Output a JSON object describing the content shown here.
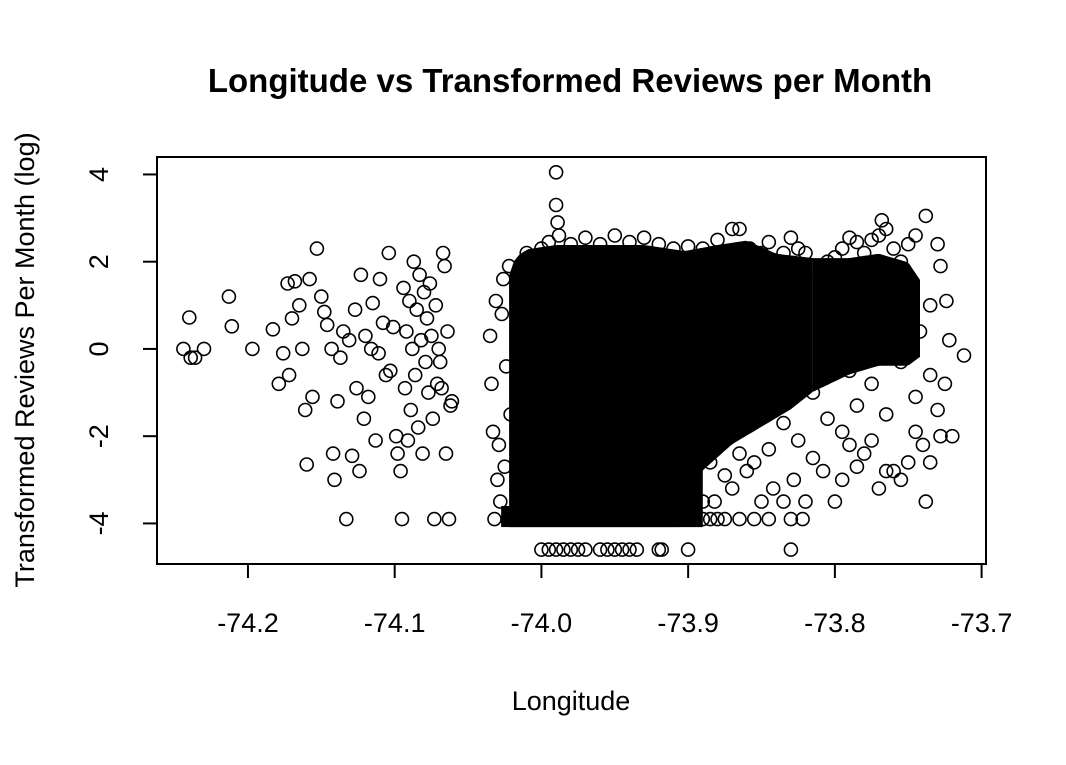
{
  "chart_data": {
    "type": "scatter",
    "title": "Longitude vs Transformed Reviews per Month",
    "xlabel": "Longitude",
    "ylabel": "Transformed Reviews Per Month (log)",
    "xlim": [
      -74.262,
      -73.697
    ],
    "ylim": [
      -4.93,
      4.4
    ],
    "x_ticks": [
      -74.2,
      -74.1,
      -74.0,
      -73.9,
      -73.8,
      -73.7
    ],
    "x_tick_labels": [
      "-74.2",
      "-74.1",
      "-74.0",
      "-73.9",
      "-73.8",
      "-73.7"
    ],
    "y_ticks": [
      -4,
      -2,
      0,
      2,
      4
    ],
    "y_tick_labels": [
      "-4",
      "-2",
      "0",
      "2",
      "4"
    ],
    "grid": false,
    "legend": "none",
    "marker": "open-circle",
    "color": "#000000",
    "points": [
      [
        -74.244,
        0.0
      ],
      [
        -74.24,
        0.72
      ],
      [
        -74.239,
        -0.2
      ],
      [
        -74.236,
        -0.2
      ],
      [
        -74.23,
        0.0
      ],
      [
        -74.213,
        1.2
      ],
      [
        -74.211,
        0.52
      ],
      [
        -74.197,
        0.0
      ],
      [
        -74.183,
        0.45
      ],
      [
        -74.179,
        -0.8
      ],
      [
        -74.176,
        -0.1
      ],
      [
        -74.173,
        1.5
      ],
      [
        -74.172,
        -0.6
      ],
      [
        -74.17,
        0.7
      ],
      [
        -74.168,
        1.55
      ],
      [
        -74.165,
        1.0
      ],
      [
        -74.163,
        0.0
      ],
      [
        -74.161,
        -1.4
      ],
      [
        -74.16,
        -2.65
      ],
      [
        -74.158,
        1.6
      ],
      [
        -74.156,
        -1.1
      ],
      [
        -74.153,
        2.3
      ],
      [
        -74.15,
        1.2
      ],
      [
        -74.148,
        0.85
      ],
      [
        -74.146,
        0.55
      ],
      [
        -74.143,
        0.0
      ],
      [
        -74.142,
        -2.4
      ],
      [
        -74.141,
        -3.0
      ],
      [
        -74.139,
        -1.2
      ],
      [
        -74.137,
        -0.2
      ],
      [
        -74.135,
        0.4
      ],
      [
        -74.133,
        -3.9
      ],
      [
        -74.131,
        0.2
      ],
      [
        -74.129,
        -2.45
      ],
      [
        -74.127,
        0.9
      ],
      [
        -74.126,
        -0.9
      ],
      [
        -74.124,
        -2.8
      ],
      [
        -74.123,
        1.7
      ],
      [
        -74.121,
        -1.6
      ],
      [
        -74.12,
        0.3
      ],
      [
        -74.118,
        -1.1
      ],
      [
        -74.116,
        0.0
      ],
      [
        -74.115,
        1.05
      ],
      [
        -74.113,
        -2.1
      ],
      [
        -74.111,
        -0.1
      ],
      [
        -74.11,
        1.6
      ],
      [
        -74.108,
        0.6
      ],
      [
        -74.106,
        -0.6
      ],
      [
        -74.104,
        2.2
      ],
      [
        -74.103,
        -0.5
      ],
      [
        -74.101,
        0.5
      ],
      [
        -74.099,
        -2.0
      ],
      [
        -74.098,
        -2.4
      ],
      [
        -74.096,
        -2.8
      ],
      [
        -74.095,
        -3.9
      ],
      [
        -74.094,
        1.4
      ],
      [
        -74.093,
        -0.9
      ],
      [
        -74.092,
        0.4
      ],
      [
        -74.091,
        -2.1
      ],
      [
        -74.09,
        1.1
      ],
      [
        -74.089,
        -1.4
      ],
      [
        -74.088,
        0.0
      ],
      [
        -74.087,
        2.0
      ],
      [
        -74.086,
        -0.6
      ],
      [
        -74.085,
        0.9
      ],
      [
        -74.084,
        -1.8
      ],
      [
        -74.083,
        1.7
      ],
      [
        -74.082,
        0.2
      ],
      [
        -74.081,
        -2.4
      ],
      [
        -74.08,
        1.3
      ],
      [
        -74.079,
        -0.3
      ],
      [
        -74.078,
        0.7
      ],
      [
        -74.077,
        -1.0
      ],
      [
        -74.076,
        1.5
      ],
      [
        -74.075,
        0.3
      ],
      [
        -74.074,
        -1.6
      ],
      [
        -74.073,
        -3.9
      ],
      [
        -74.072,
        1.0
      ],
      [
        -74.071,
        -0.8
      ],
      [
        -74.07,
        0.0
      ],
      [
        -74.069,
        -0.3
      ],
      [
        -74.068,
        -0.9
      ],
      [
        -74.067,
        2.2
      ],
      [
        -74.066,
        1.9
      ],
      [
        -74.065,
        -2.4
      ],
      [
        -74.064,
        0.4
      ],
      [
        -74.063,
        -3.9
      ],
      [
        -74.062,
        -1.3
      ],
      [
        -74.061,
        -1.2
      ],
      [
        -74.035,
        0.3
      ],
      [
        -74.034,
        -0.8
      ],
      [
        -74.033,
        -1.9
      ],
      [
        -74.032,
        -3.9
      ],
      [
        -74.031,
        1.1
      ],
      [
        -74.03,
        -3.0
      ],
      [
        -74.029,
        -2.2
      ],
      [
        -74.028,
        -3.5
      ],
      [
        -74.027,
        0.8
      ],
      [
        -74.026,
        1.6
      ],
      [
        -74.025,
        -2.7
      ],
      [
        -74.024,
        -0.4
      ],
      [
        -74.023,
        -3.9
      ],
      [
        -74.022,
        1.9
      ],
      [
        -74.021,
        -1.5
      ],
      [
        -73.99,
        4.05
      ],
      [
        -73.99,
        3.3
      ],
      [
        -73.989,
        2.9
      ],
      [
        -73.988,
        2.6
      ],
      [
        -74.0,
        -4.6
      ],
      [
        -73.995,
        -4.6
      ],
      [
        -73.99,
        -4.6
      ],
      [
        -73.985,
        -4.6
      ],
      [
        -73.98,
        -4.6
      ],
      [
        -73.975,
        -4.6
      ],
      [
        -73.97,
        -4.6
      ],
      [
        -73.96,
        -4.6
      ],
      [
        -73.955,
        -4.6
      ],
      [
        -73.95,
        -4.6
      ],
      [
        -73.945,
        -4.6
      ],
      [
        -73.94,
        -4.6
      ],
      [
        -73.935,
        -4.6
      ],
      [
        -73.92,
        -4.6
      ],
      [
        -73.918,
        -4.6
      ],
      [
        -73.9,
        -4.6
      ],
      [
        -73.83,
        -4.6
      ],
      [
        -73.898,
        -3.9
      ],
      [
        -73.89,
        -3.9
      ],
      [
        -73.885,
        -3.9
      ],
      [
        -73.88,
        -3.9
      ],
      [
        -73.875,
        -3.9
      ],
      [
        -73.865,
        -3.9
      ],
      [
        -73.855,
        -3.9
      ],
      [
        -73.845,
        -3.9
      ],
      [
        -73.83,
        -3.9
      ],
      [
        -73.822,
        -3.9
      ],
      [
        -73.89,
        -3.5
      ],
      [
        -73.882,
        -3.5
      ],
      [
        -73.87,
        -3.2
      ],
      [
        -73.86,
        -2.8
      ],
      [
        -73.85,
        -3.5
      ],
      [
        -73.842,
        -3.2
      ],
      [
        -73.835,
        -3.5
      ],
      [
        -73.828,
        -3.0
      ],
      [
        -73.82,
        -3.5
      ],
      [
        -73.815,
        -2.5
      ],
      [
        -73.808,
        -2.8
      ],
      [
        -73.8,
        -3.5
      ],
      [
        -73.795,
        -3.0
      ],
      [
        -73.79,
        -2.2
      ],
      [
        -73.785,
        -2.7
      ],
      [
        -73.78,
        -2.4
      ],
      [
        -73.775,
        -2.1
      ],
      [
        -73.77,
        -3.2
      ],
      [
        -73.765,
        -2.8
      ],
      [
        -73.76,
        -2.8
      ],
      [
        -73.755,
        -3.0
      ],
      [
        -73.75,
        -2.6
      ],
      [
        -73.745,
        -1.9
      ],
      [
        -73.74,
        -2.2
      ],
      [
        -73.738,
        -3.5
      ],
      [
        -73.735,
        -2.6
      ],
      [
        -73.73,
        -1.4
      ],
      [
        -73.728,
        -2.0
      ],
      [
        -73.725,
        -0.8
      ],
      [
        -73.72,
        -2.0
      ],
      [
        -73.722,
        0.2
      ],
      [
        -73.712,
        -0.15
      ],
      [
        -73.724,
        1.1
      ],
      [
        -73.73,
        2.4
      ],
      [
        -73.738,
        3.05
      ],
      [
        -73.745,
        2.6
      ],
      [
        -73.75,
        2.4
      ],
      [
        -73.755,
        2.0
      ],
      [
        -73.76,
        2.3
      ],
      [
        -73.765,
        2.75
      ],
      [
        -73.768,
        2.95
      ],
      [
        -73.77,
        2.6
      ],
      [
        -73.775,
        2.5
      ],
      [
        -73.78,
        2.2
      ],
      [
        -73.785,
        2.45
      ],
      [
        -73.79,
        2.55
      ],
      [
        -73.795,
        2.3
      ],
      [
        -73.8,
        2.1
      ],
      [
        -73.805,
        2.0
      ],
      [
        -73.81,
        1.6
      ],
      [
        -73.815,
        1.9
      ],
      [
        -73.82,
        2.2
      ],
      [
        -73.825,
        2.3
      ],
      [
        -73.83,
        2.55
      ],
      [
        -73.835,
        2.2
      ],
      [
        -73.84,
        2.0
      ],
      [
        -73.845,
        2.45
      ],
      [
        -73.85,
        2.2
      ],
      [
        -73.858,
        2.3
      ],
      [
        -73.865,
        2.75
      ],
      [
        -73.87,
        2.75
      ],
      [
        -73.88,
        2.5
      ],
      [
        -73.89,
        2.3
      ],
      [
        -73.9,
        2.35
      ],
      [
        -73.91,
        2.3
      ],
      [
        -73.92,
        2.4
      ],
      [
        -73.93,
        2.55
      ],
      [
        -73.94,
        2.45
      ],
      [
        -73.95,
        2.6
      ],
      [
        -73.96,
        2.4
      ],
      [
        -73.97,
        2.55
      ],
      [
        -73.98,
        2.4
      ],
      [
        -73.995,
        2.45
      ],
      [
        -74.0,
        2.3
      ],
      [
        -74.01,
        2.2
      ],
      [
        -73.79,
        -0.5
      ],
      [
        -73.78,
        0.6
      ],
      [
        -73.77,
        1.4
      ],
      [
        -73.76,
        0.9
      ],
      [
        -73.75,
        1.6
      ],
      [
        -73.742,
        0.4
      ],
      [
        -73.735,
        1.0
      ],
      [
        -73.728,
        1.9
      ],
      [
        -73.735,
        -0.6
      ],
      [
        -73.745,
        -1.1
      ],
      [
        -73.755,
        -0.3
      ],
      [
        -73.765,
        -1.5
      ],
      [
        -73.775,
        -0.8
      ],
      [
        -73.785,
        -1.3
      ],
      [
        -73.795,
        -1.9
      ],
      [
        -73.805,
        -1.6
      ],
      [
        -73.815,
        -1.0
      ],
      [
        -73.825,
        -2.1
      ],
      [
        -73.835,
        -1.7
      ],
      [
        -73.845,
        -2.3
      ],
      [
        -73.855,
        -2.6
      ],
      [
        -73.865,
        -2.4
      ],
      [
        -73.875,
        -2.9
      ],
      [
        -73.885,
        -2.6
      ]
    ],
    "dense_regions": [
      {
        "x": [
          -74.022,
          -73.89
        ],
        "y_top": [
          [
            -74.022,
            1.5
          ],
          [
            -74.018,
            1.9
          ],
          [
            -74.01,
            2.1
          ],
          [
            -73.99,
            2.2
          ],
          [
            -73.96,
            2.2
          ],
          [
            -73.93,
            2.2
          ],
          [
            -73.91,
            2.1
          ],
          [
            -73.89,
            2.0
          ]
        ],
        "y_bottom": -3.9
      },
      {
        "x": [
          -74.022,
          -73.912
        ],
        "y_bottom_dense": -3.9
      },
      {
        "x": [
          -73.912,
          -73.815
        ],
        "y_top": [
          [
            -73.912,
            2.0
          ],
          [
            -73.88,
            2.2
          ],
          [
            -73.86,
            2.3
          ],
          [
            -73.84,
            2.0
          ],
          [
            -73.815,
            1.9
          ]
        ],
        "y_bottom": [
          [
            -73.912,
            -3.2
          ],
          [
            -73.89,
            -2.6
          ],
          [
            -73.87,
            -2.0
          ],
          [
            -73.85,
            -1.6
          ],
          [
            -73.83,
            -1.2
          ],
          [
            -73.815,
            -0.8
          ]
        ]
      },
      {
        "x": [
          -73.815,
          -73.742
        ],
        "y_top": [
          [
            -73.815,
            1.9
          ],
          [
            -73.79,
            1.9
          ],
          [
            -73.77,
            2.0
          ],
          [
            -73.75,
            1.8
          ],
          [
            -73.742,
            1.4
          ]
        ],
        "y_bottom": [
          [
            -73.815,
            -0.8
          ],
          [
            -73.79,
            -0.4
          ],
          [
            -73.77,
            -0.2
          ],
          [
            -73.75,
            -0.2
          ],
          [
            -73.742,
            0.0
          ]
        ]
      }
    ]
  }
}
